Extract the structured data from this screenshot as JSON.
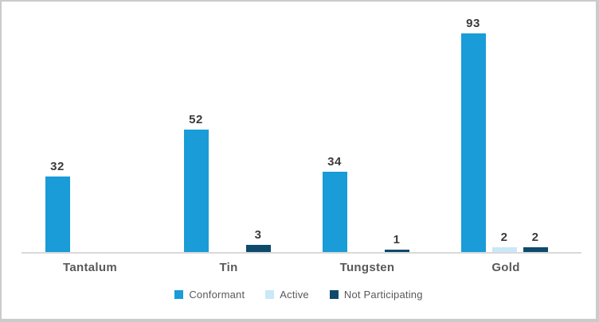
{
  "chart_data": {
    "type": "bar",
    "title": "",
    "categories": [
      "Tantalum",
      "Tin",
      "Tungsten",
      "Gold"
    ],
    "series": [
      {
        "name": "Conformant",
        "color": "#199cd8",
        "values": [
          32,
          52,
          34,
          93
        ]
      },
      {
        "name": "Active",
        "color": "#c9e8f8",
        "values": [
          0,
          0,
          0,
          2
        ]
      },
      {
        "name": "Not Participating",
        "color": "#0e4a6c",
        "values": [
          0,
          3,
          1,
          2
        ]
      }
    ],
    "ylim": [
      0,
      93
    ],
    "grid": false,
    "y_axis_visible": false,
    "x_axis_line_color": "#d9d9d9",
    "data_labels": "shown above each bar for non-zero values",
    "legend_position": "bottom-center"
  },
  "styles": {
    "value_label_color": "#3b3b3b",
    "category_label_color": "#595959",
    "legend_text_color": "#595959",
    "background": "#ffffff",
    "frame_border_color": "#cbcbcb"
  }
}
